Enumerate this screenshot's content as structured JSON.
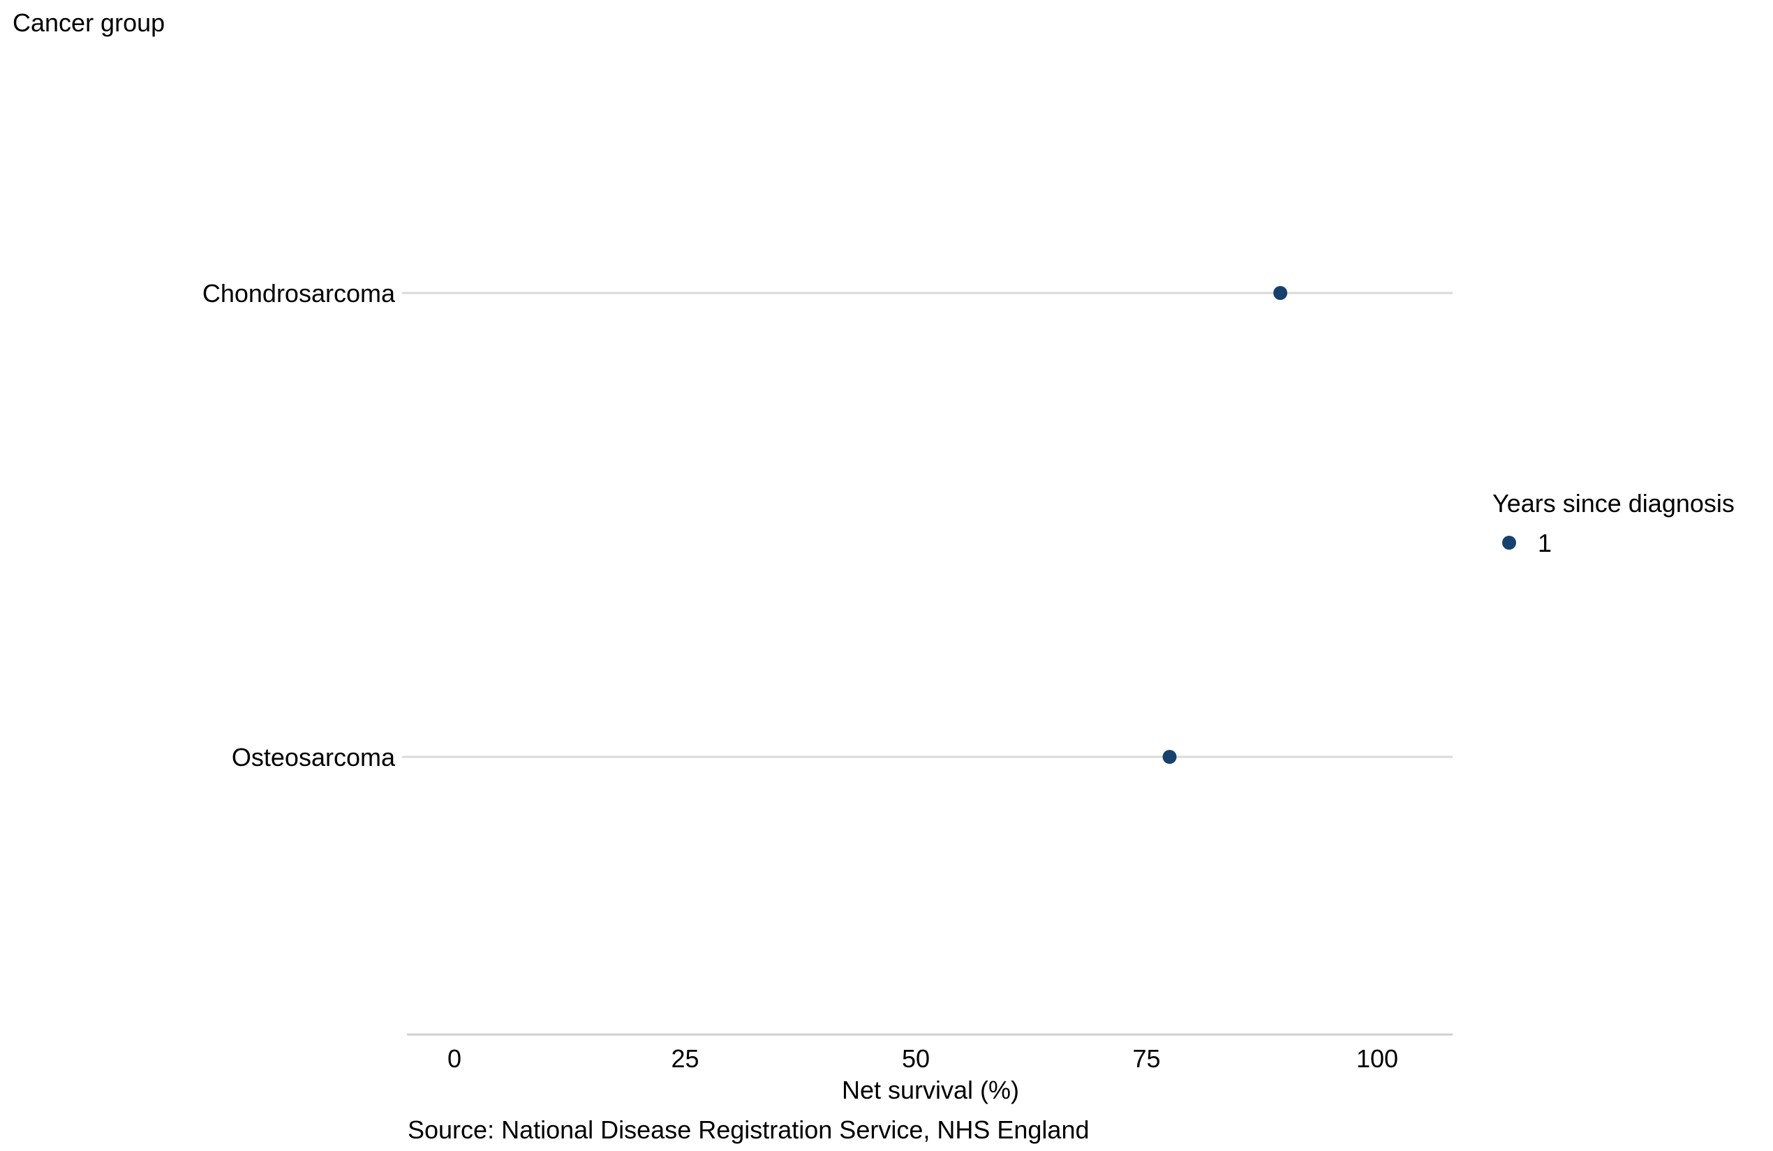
{
  "chart_data": {
    "type": "scatter",
    "orientation": "horizontal",
    "y_axis_title": "Cancer group",
    "xlabel": "Net survival (%)",
    "source": "Source: National Disease Registration Service, NHS England",
    "categories": [
      "Chondrosarcoma",
      "Osteosarcoma"
    ],
    "x_ticks": [
      0,
      25,
      50,
      75,
      100
    ],
    "xlim": [
      -5,
      108
    ],
    "legend": {
      "title": "Years since diagnosis",
      "position": "right",
      "entries": [
        "1"
      ]
    },
    "series": [
      {
        "name": "1",
        "color": "#17406d",
        "values": [
          89.5,
          77.5
        ]
      }
    ],
    "grid": {
      "horizontal_guides": true,
      "guide_color": "#d9d9d9"
    }
  }
}
